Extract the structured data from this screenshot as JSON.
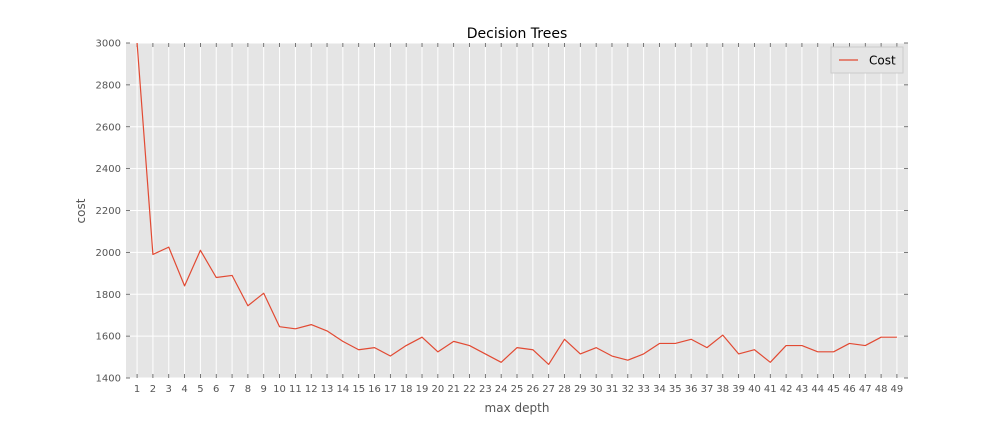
{
  "chart_data": {
    "type": "line",
    "title": "Decision Trees",
    "xlabel": "max depth",
    "ylabel": "cost",
    "x": [
      1,
      2,
      3,
      4,
      5,
      6,
      7,
      8,
      9,
      10,
      11,
      12,
      13,
      14,
      15,
      16,
      17,
      18,
      19,
      20,
      21,
      22,
      23,
      24,
      25,
      26,
      27,
      28,
      29,
      30,
      31,
      32,
      33,
      34,
      35,
      36,
      37,
      38,
      39,
      40,
      41,
      42,
      43,
      44,
      45,
      46,
      47,
      48,
      49
    ],
    "xticks": [
      "1",
      "2",
      "3",
      "4",
      "5",
      "6",
      "7",
      "8",
      "9",
      "10",
      "11",
      "12",
      "13",
      "14",
      "15",
      "16",
      "17",
      "18",
      "19",
      "20",
      "21",
      "22",
      "23",
      "24",
      "25",
      "26",
      "27",
      "28",
      "29",
      "30",
      "31",
      "32",
      "33",
      "34",
      "35",
      "36",
      "37",
      "38",
      "39",
      "40",
      "41",
      "42",
      "43",
      "44",
      "45",
      "46",
      "47",
      "48",
      "49"
    ],
    "xlim": [
      0.3,
      49.7
    ],
    "ylim": [
      1400,
      3000
    ],
    "yticks": [
      "1400",
      "1600",
      "1800",
      "2000",
      "2200",
      "2400",
      "2600",
      "2800",
      "3000"
    ],
    "series": [
      {
        "name": "Cost",
        "color": "#e24a33",
        "values": [
          3000,
          1990,
          2025,
          1840,
          2010,
          1880,
          1890,
          1745,
          1805,
          1645,
          1635,
          1655,
          1625,
          1575,
          1535,
          1545,
          1505,
          1555,
          1595,
          1525,
          1575,
          1555,
          1515,
          1475,
          1545,
          1535,
          1465,
          1585,
          1515,
          1545,
          1505,
          1485,
          1515,
          1565,
          1565,
          1585,
          1545,
          1605,
          1515,
          1535,
          1475,
          1555,
          1555,
          1525,
          1525,
          1565,
          1555,
          1595,
          1595
        ]
      }
    ],
    "grid": true,
    "legend_position": "top-right",
    "background": "#e5e5e5",
    "grid_color": "#ffffff"
  }
}
